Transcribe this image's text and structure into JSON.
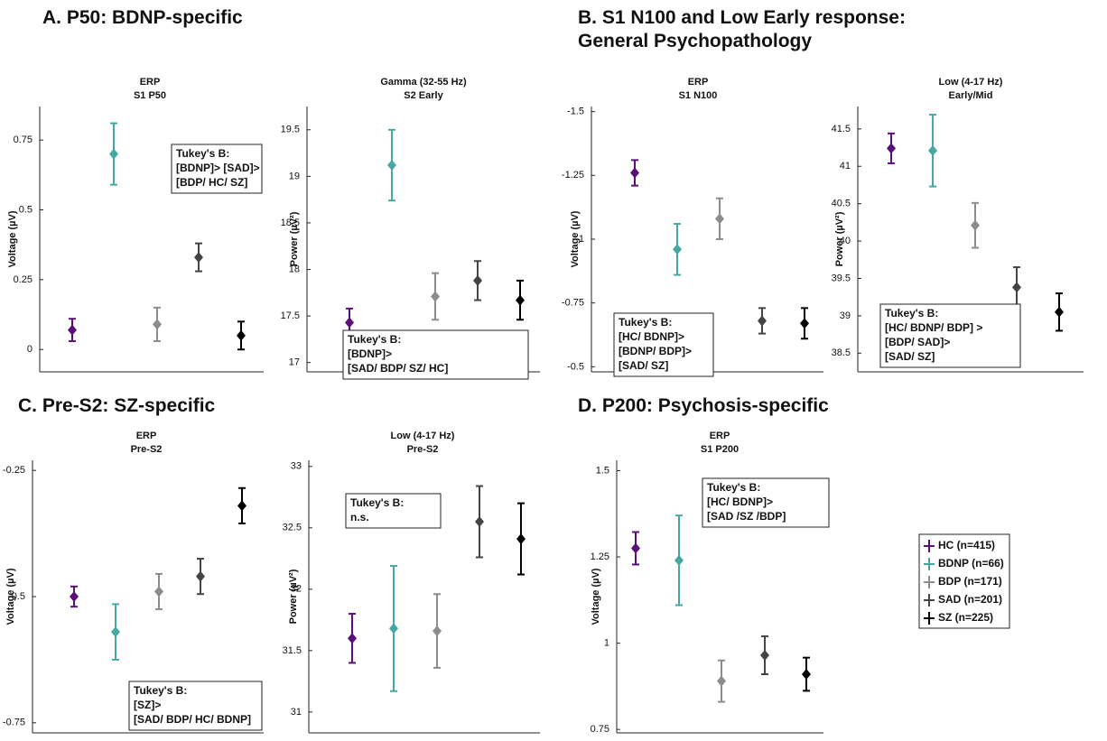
{
  "section_titles": [
    "A. P50: BDNP-specific",
    "B. S1 N100 and Low Early response:",
    "General Psychopathology",
    "C. Pre-S2: SZ-specific",
    "D. P200: Psychosis-specific"
  ],
  "legend": [
    {
      "name": "HC (n=415)",
      "color": "#5b0f7a"
    },
    {
      "name": "BDNP (n=66)",
      "color": "#45a8a5"
    },
    {
      "name": "BDP (n=171)",
      "color": "#8c8c8c"
    },
    {
      "name": "SAD (n=201)",
      "color": "#444444"
    },
    {
      "name": "SZ (n=225)",
      "color": "#000000"
    }
  ],
  "chart_data": [
    {
      "type": "errorbar",
      "title": [
        "ERP",
        "S1 P50"
      ],
      "y_label": "Voltage (µV)",
      "ylim": [
        -0.08,
        0.87
      ],
      "yticks": [
        0,
        0.25,
        0.5,
        0.75
      ],
      "values": [
        0.07,
        0.7,
        0.09,
        0.33,
        0.05
      ],
      "errors": [
        0.04,
        0.11,
        0.06,
        0.05,
        0.05
      ],
      "annotation": [
        "Tukey's B:",
        "[BDNP]> [SAD]>",
        "[BDP/ HC/ SZ]"
      ]
    },
    {
      "type": "errorbar",
      "title": [
        "Gamma (32-55 Hz)",
        "S2 Early"
      ],
      "y_label": "Power (µV²)",
      "ylim": [
        16.9,
        19.75
      ],
      "yticks": [
        17,
        17.5,
        18,
        18.5,
        19,
        19.5
      ],
      "values": [
        17.43,
        19.12,
        17.71,
        17.88,
        17.67
      ],
      "errors": [
        0.15,
        0.38,
        0.25,
        0.21,
        0.21
      ],
      "annotation": [
        "Tukey's B:",
        "[BDNP]>",
        "[SAD/ BDP/ SZ/ HC]"
      ]
    },
    {
      "type": "errorbar",
      "title": [
        "ERP",
        "S1 N100"
      ],
      "y_label": "Voltage (µV)",
      "ylim": [
        -0.48,
        -1.52
      ],
      "yticks": [
        -1.5,
        -1.25,
        -1,
        -0.75,
        -0.5
      ],
      "values": [
        -1.26,
        -0.96,
        -1.08,
        -0.68,
        -0.67
      ],
      "errors": [
        0.05,
        0.1,
        0.08,
        0.05,
        0.06
      ],
      "annotation": [
        "Tukey's B:",
        "[HC/ BDNP]>",
        "[BDNP/ BDP]>",
        "[SAD/ SZ]"
      ]
    },
    {
      "type": "errorbar",
      "title": [
        "Low (4-17 Hz)",
        "Early/Mid"
      ],
      "y_label": "Power (µV²)",
      "ylim": [
        38.25,
        41.8
      ],
      "yticks": [
        38.5,
        39,
        39.5,
        40,
        40.5,
        41,
        41.5
      ],
      "values": [
        41.24,
        41.21,
        40.21,
        39.38,
        39.05
      ],
      "errors": [
        0.2,
        0.48,
        0.3,
        0.27,
        0.25
      ],
      "annotation": [
        "Tukey's B:",
        "[HC/ BDNP/ BDP] >",
        "[BDP/ SAD]>",
        "[SAD/ SZ]"
      ]
    },
    {
      "type": "errorbar",
      "title": [
        "ERP",
        "Pre-S2"
      ],
      "y_label": "Voltage (µV)",
      "ylim": [
        -0.77,
        -0.23
      ],
      "yticks": [
        -0.75,
        -0.5,
        -0.25
      ],
      "values": [
        -0.5,
        -0.57,
        -0.49,
        -0.46,
        -0.32
      ],
      "errors": [
        0.02,
        0.055,
        0.035,
        0.035,
        0.035
      ],
      "annotation": [
        "Tukey's B:",
        "[SZ]>",
        "[SAD/ BDP/ HC/ BDNP]"
      ]
    },
    {
      "type": "errorbar",
      "title": [
        "Low (4-17 Hz)",
        "Pre-S2"
      ],
      "y_label": "Power (µV²)",
      "ylim": [
        30.83,
        33.05
      ],
      "yticks": [
        31,
        31.5,
        32,
        32.5,
        33
      ],
      "values": [
        31.6,
        31.68,
        31.66,
        32.55,
        32.41
      ],
      "errors": [
        0.2,
        0.51,
        0.3,
        0.29,
        0.29
      ],
      "annotation": [
        "Tukey's B:",
        "n.s."
      ]
    },
    {
      "type": "errorbar",
      "title": [
        "ERP",
        "S1 P200"
      ],
      "y_label": "Voltage (µV)",
      "ylim": [
        0.74,
        1.53
      ],
      "yticks": [
        0.75,
        1,
        1.25,
        1.5
      ],
      "values": [
        1.275,
        1.24,
        0.89,
        0.965,
        0.91
      ],
      "errors": [
        0.047,
        0.13,
        0.06,
        0.055,
        0.048
      ],
      "annotation": [
        "Tukey's B:",
        "[HC/ BDNP]>",
        "[SAD /SZ /BDP]"
      ]
    }
  ]
}
